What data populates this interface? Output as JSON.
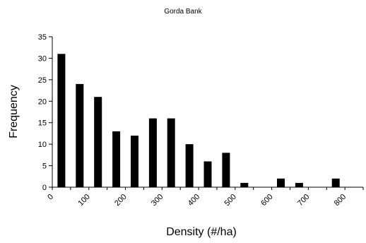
{
  "chart_data": {
    "type": "bar",
    "title": "Gorda Bank",
    "xlabel": "Density (#/ha)",
    "ylabel": "Frequency",
    "ylim": [
      0,
      35
    ],
    "yticks": [
      0,
      5,
      10,
      15,
      20,
      25,
      30,
      35
    ],
    "xlim": [
      0,
      850
    ],
    "xticks": [
      0,
      100,
      200,
      300,
      400,
      500,
      600,
      700,
      800
    ],
    "bin_width": 50,
    "grid": false,
    "legend": "none",
    "bar_color": "#000000",
    "series": [
      {
        "x": [
          25,
          75,
          125,
          175,
          225,
          275,
          325,
          375,
          425,
          475,
          525,
          575,
          625,
          675,
          725,
          775
        ],
        "values": [
          31,
          24,
          21,
          13,
          12,
          16,
          16,
          10,
          6,
          8,
          1,
          0,
          2,
          1,
          0,
          2
        ]
      }
    ]
  }
}
